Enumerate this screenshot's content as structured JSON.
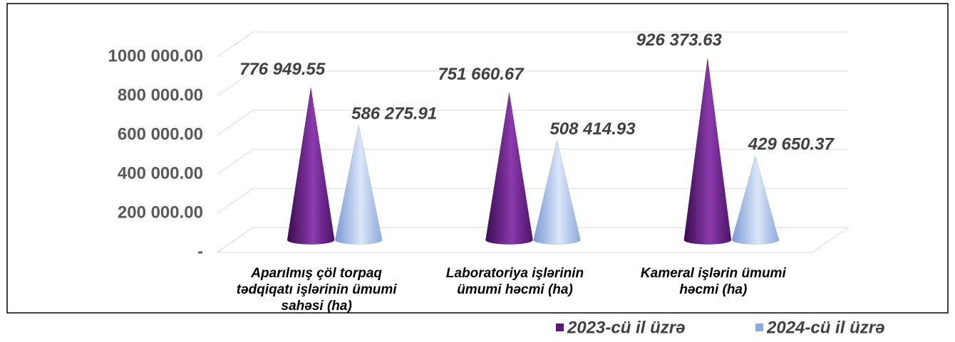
{
  "chart_data": {
    "type": "cone-bar",
    "categories": [
      "Aparılmış çöl torpaq tədqiqatı işlərinin ümumi sahəsi (ha)",
      "Laboratoriya işlərinin ümumi həcmi (ha)",
      "Kameral işlərin ümumi həcmi (ha)"
    ],
    "series": [
      {
        "name": "2023-cü il üzrə",
        "color": "#5b1a78",
        "values": [
          776949.55,
          751660.67,
          926373.63
        ],
        "value_labels": [
          "776 949.55",
          "751 660.67",
          "926 373.63"
        ]
      },
      {
        "name": "2024-cü il üzrə",
        "color": "#9db5e3",
        "values": [
          586275.91,
          508414.93,
          429650.37
        ],
        "value_labels": [
          "586 275.91",
          "508 414.93",
          "429 650.37"
        ]
      }
    ],
    "ylim": [
      0,
      1000000
    ],
    "yticks": [
      {
        "value": 0,
        "label": "-"
      },
      {
        "value": 200000,
        "label": "200 000.00"
      },
      {
        "value": 400000,
        "label": "400 000.00"
      },
      {
        "value": 600000,
        "label": "600 000.00"
      },
      {
        "value": 800000,
        "label": "800 000.00"
      },
      {
        "value": 1000000,
        "label": "1000 000.00"
      }
    ],
    "grid": true,
    "legend": "bottom-right"
  }
}
